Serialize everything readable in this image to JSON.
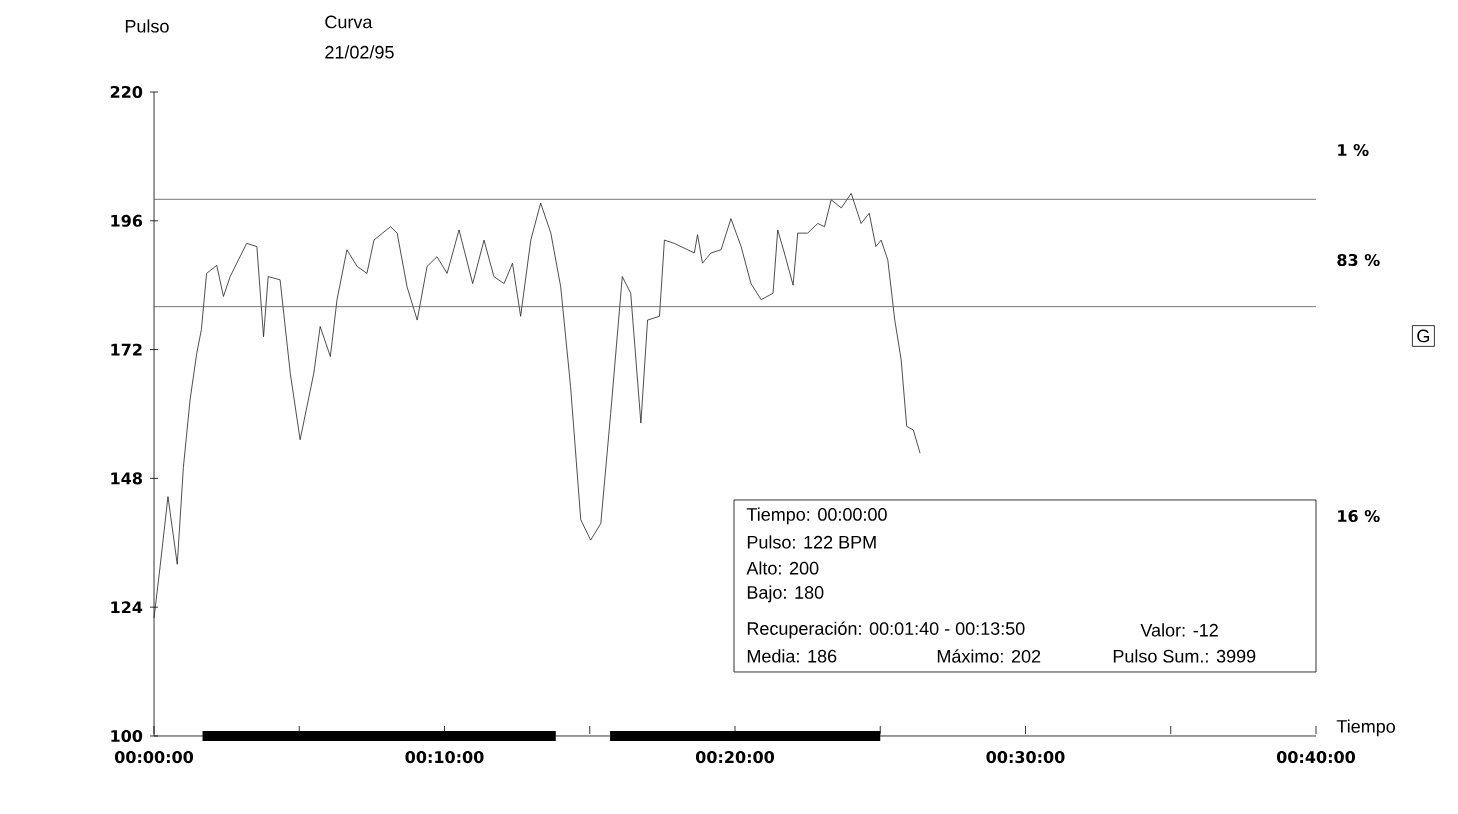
{
  "chart_data": {
    "type": "line",
    "title": "Curva",
    "subtitle": "21/02/95",
    "xlabel": "Tiempo",
    "ylabel": "Pulso",
    "series": [
      {
        "color": "#222222",
        "x": [
          0,
          0.21,
          0.48,
          0.8,
          1.01,
          1.24,
          1.47,
          1.63,
          1.81,
          2.16,
          2.39,
          2.62,
          3.19,
          3.54,
          3.77,
          3.93,
          4.34,
          4.69,
          5.03,
          5.5,
          5.72,
          6.07,
          6.3,
          6.64,
          6.99,
          7.33,
          7.57,
          8.14,
          8.37,
          8.71,
          9.06,
          9.4,
          9.74,
          10.09,
          10.5,
          10.97,
          11.36,
          11.7,
          12.05,
          12.34,
          12.62,
          12.97,
          13.31,
          13.66,
          14,
          14.34,
          14.69,
          15.03,
          15.38,
          15.72,
          16.12,
          16.41,
          16.76,
          16.99,
          17.4,
          17.57,
          17.91,
          18.14,
          18.6,
          18.71,
          18.88,
          19.17,
          19.52,
          19.86,
          20.21,
          20.55,
          20.9,
          21.31,
          21.47,
          21.7,
          22,
          22.16,
          22.5,
          22.85,
          23.08,
          23.31,
          23.66,
          24,
          24.34,
          24.62,
          24.85,
          25.03,
          25.26,
          25.5,
          25.72,
          25.91,
          26.14,
          26.37
        ],
        "values": [
          122,
          131.6,
          144.6,
          132,
          150,
          162.6,
          171.3,
          175.7,
          186.2,
          187.7,
          181.9,
          185.6,
          191.8,
          191.2,
          174.4,
          185.6,
          185,
          167.6,
          155.2,
          167.6,
          176.3,
          170.7,
          181.3,
          190.6,
          187.5,
          186.2,
          192.4,
          194.9,
          193.7,
          183.7,
          177.5,
          187.5,
          189.3,
          186.2,
          194.3,
          184.3,
          192.4,
          185.6,
          184.3,
          188.1,
          178.2,
          192.4,
          199.3,
          193.7,
          183.7,
          165.1,
          140.3,
          136.5,
          139.6,
          160.1,
          185.6,
          182.5,
          158.3,
          177.5,
          178.2,
          192.4,
          191.8,
          191.2,
          190,
          193.4,
          188.1,
          190,
          190.6,
          196.4,
          191.2,
          184.3,
          181.3,
          182.5,
          194.3,
          190,
          184,
          193.7,
          193.7,
          195.5,
          194.9,
          199.9,
          198.4,
          201.1,
          195.5,
          197.4,
          191.2,
          192.4,
          188.7,
          177.5,
          170.1,
          157.7,
          157,
          152.7
        ]
      },
      {
        "color": "#000000",
        "x": [
          1.67,
          13.83
        ],
        "values": [
          100,
          100
        ]
      },
      {
        "color": "#000000",
        "x": [
          15.7,
          25.0
        ],
        "values": [
          100,
          100
        ]
      }
    ],
    "xlim": [
      0,
      40
    ],
    "xticks": [
      {
        "value": 0,
        "label": "00:00:00"
      },
      {
        "value": 5,
        "label": null
      },
      {
        "value": 10,
        "label": "00:10:00"
      },
      {
        "value": 15,
        "label": null
      },
      {
        "value": 20,
        "label": "00:20:00"
      },
      {
        "value": 25,
        "label": null
      },
      {
        "value": 30,
        "label": "00:30:00"
      },
      {
        "value": 35,
        "label": null
      },
      {
        "value": 40,
        "label": "00:40:00"
      }
    ],
    "ylim": [
      100,
      220
    ],
    "yticks": [
      100,
      124,
      148,
      172,
      196,
      220
    ],
    "ref_lines": [
      {
        "axis": "y",
        "value": 200,
        "color": "#555555"
      },
      {
        "axis": "y",
        "value": 180,
        "color": "#555555"
      }
    ],
    "annotations": [
      "Tiempo: 00:00:00",
      "Pulso: 122 BPM",
      "Alto: 200",
      "Bajo: 180",
      "Recuperación: 00:01:40 - 00:13:50",
      "Valor: -12",
      "Media: 186",
      "Máximo: 202",
      "Pulso Sum.: 3999",
      "1 %",
      "83 %",
      "16 %",
      "G"
    ]
  }
}
